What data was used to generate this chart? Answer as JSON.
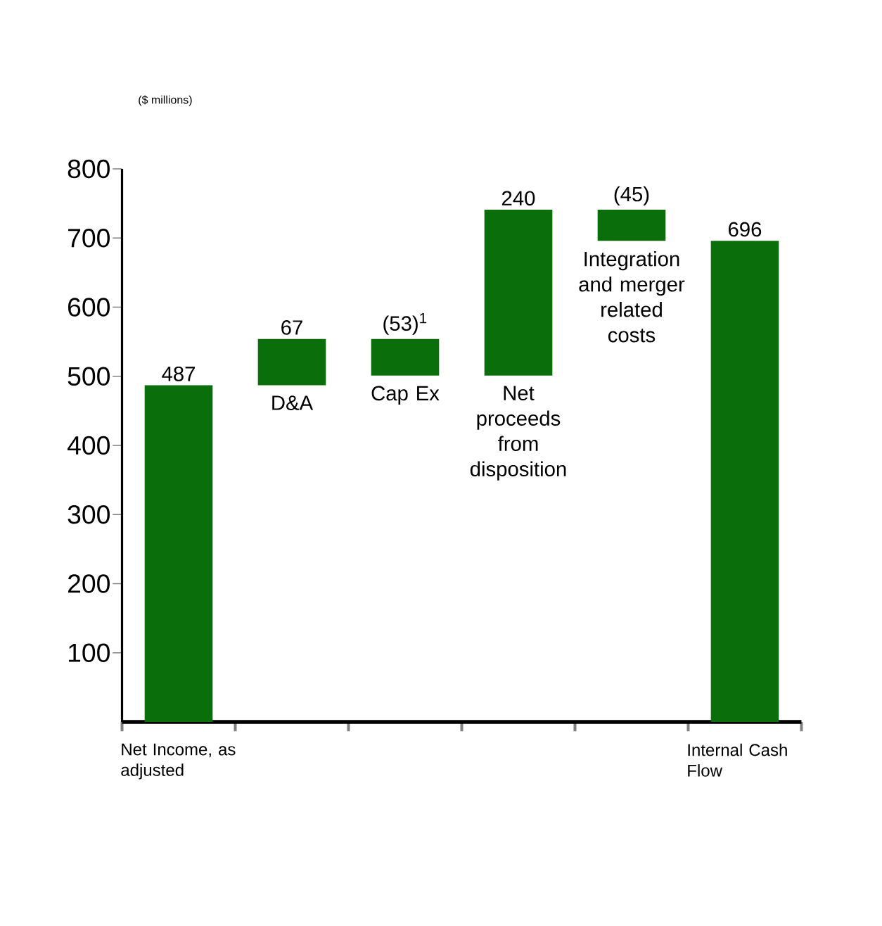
{
  "chart_data": {
    "type": "bar",
    "ylabel": "($ millions)",
    "categories": [
      "Net Income, as adjusted",
      "D&A",
      "Cap Ex",
      "Net proceeds from disposition",
      "Integration and merger related costs",
      "Internal Cash Flow"
    ],
    "values": [
      487,
      67,
      -53,
      240,
      -45,
      696
    ],
    "base": [
      0,
      487,
      554,
      501,
      741,
      0
    ],
    "value_labels": [
      "487",
      "67",
      "(53)$^{1}$",
      "240",
      "(45)",
      "696"
    ],
    "color": "#0a6e0a",
    "ylim": [
      0,
      800
    ],
    "yticks": [
      100,
      200,
      300,
      400,
      500,
      600,
      700,
      800
    ]
  }
}
